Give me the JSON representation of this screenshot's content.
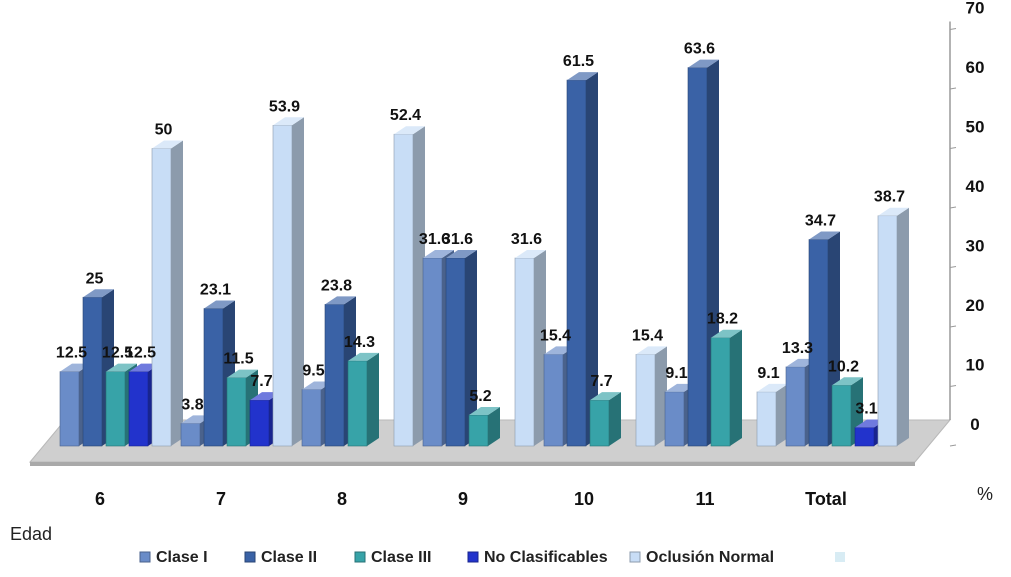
{
  "chart_data": {
    "type": "bar",
    "categories": [
      "6",
      "7",
      "8",
      "9",
      "10",
      "11",
      "Total"
    ],
    "xlabel": "Edad",
    "ylabel": "%",
    "ylim": [
      0,
      70
    ],
    "yticks": [
      0,
      10,
      20,
      30,
      40,
      50,
      60,
      70
    ],
    "series": [
      {
        "name": "Clase I",
        "color": "#6a8cc8",
        "values": [
          12.5,
          3.8,
          9.5,
          31.6,
          15.4,
          9.1,
          13.3
        ]
      },
      {
        "name": "Clase II",
        "color": "#3a62a6",
        "values": [
          25,
          23.1,
          23.8,
          31.6,
          61.5,
          63.6,
          34.7
        ]
      },
      {
        "name": "Clase III",
        "color": "#37a3a8",
        "values": [
          12.5,
          11.5,
          14.3,
          5.2,
          7.7,
          18.2,
          10.2
        ]
      },
      {
        "name": "No Clasificables",
        "color": "#2233cc",
        "values": [
          12.5,
          7.7,
          null,
          null,
          null,
          null,
          3.1
        ]
      },
      {
        "name": "Oclusión Normal",
        "color": "#c8ddf6",
        "values": [
          50,
          53.9,
          52.4,
          31.6,
          15.4,
          9.1,
          38.7
        ]
      }
    ],
    "legend_position": "bottom"
  }
}
